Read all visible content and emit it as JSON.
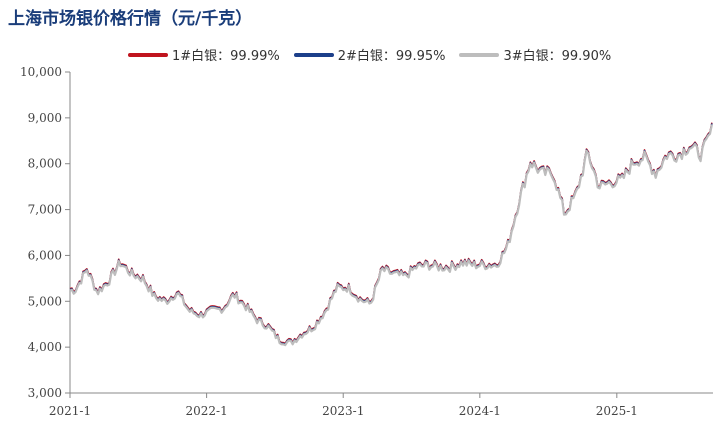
{
  "chart_data": {
    "type": "line",
    "title": "上海市场银价格行情（元/千克）",
    "xlabel": "",
    "ylabel": "",
    "ylim": [
      3000,
      10000
    ],
    "yticks": [
      "3,000",
      "4,000",
      "5,000",
      "6,000",
      "7,000",
      "8,000",
      "9,000",
      "10,000"
    ],
    "ytick_values": [
      3000,
      4000,
      5000,
      6000,
      7000,
      8000,
      9000,
      10000
    ],
    "xlim": [
      "2021-01-01",
      "2025-09-15"
    ],
    "xticks": [
      "2021-1",
      "2022-1",
      "2023-1",
      "2024-1",
      "2025-1"
    ],
    "xtick_dates": [
      "2021-01-01",
      "2022-01-01",
      "2023-01-01",
      "2024-01-01",
      "2025-01-01"
    ],
    "grid": false,
    "legend_position": "top",
    "series": [
      {
        "name": "1#白银：99.99%",
        "color": "#c0141e"
      },
      {
        "name": "2#白银：99.95%",
        "color": "#1c3f8a"
      },
      {
        "name": "3#白银：99.90%",
        "color": "#bdbdbd"
      }
    ],
    "x": [
      "2021-01",
      "2021-02",
      "2021-03",
      "2021-04",
      "2021-05",
      "2021-06",
      "2021-07",
      "2021-08",
      "2021-09",
      "2021-10",
      "2021-11",
      "2021-12",
      "2022-01",
      "2022-02",
      "2022-03",
      "2022-04",
      "2022-05",
      "2022-06",
      "2022-07",
      "2022-08",
      "2022-09",
      "2022-10",
      "2022-11",
      "2022-12",
      "2023-01",
      "2023-02",
      "2023-03",
      "2023-04",
      "2023-05",
      "2023-06",
      "2023-07",
      "2023-08",
      "2023-09",
      "2023-10",
      "2023-11",
      "2023-12",
      "2024-01",
      "2024-02",
      "2024-03",
      "2024-04",
      "2024-05",
      "2024-06",
      "2024-07",
      "2024-08",
      "2024-09",
      "2024-10",
      "2024-11",
      "2024-12",
      "2025-01",
      "2025-02",
      "2025-03",
      "2025-04",
      "2025-05",
      "2025-06",
      "2025-07",
      "2025-08",
      "2025-09"
    ],
    "values": [
      5250,
      5700,
      5200,
      5450,
      5850,
      5600,
      5500,
      5100,
      5000,
      5200,
      4800,
      4700,
      4800,
      4850,
      5150,
      4900,
      4600,
      4450,
      4150,
      4100,
      4300,
      4450,
      4800,
      5300,
      5300,
      5050,
      4950,
      5700,
      5600,
      5550,
      5750,
      5800,
      5750,
      5750,
      5850,
      5800,
      5800,
      5800,
      6200,
      7200,
      8050,
      7800,
      7800,
      6900,
      7350,
      8250,
      7500,
      7600,
      7650,
      8050,
      8150,
      7800,
      8200,
      8200,
      8400,
      8200,
      8800
    ]
  }
}
